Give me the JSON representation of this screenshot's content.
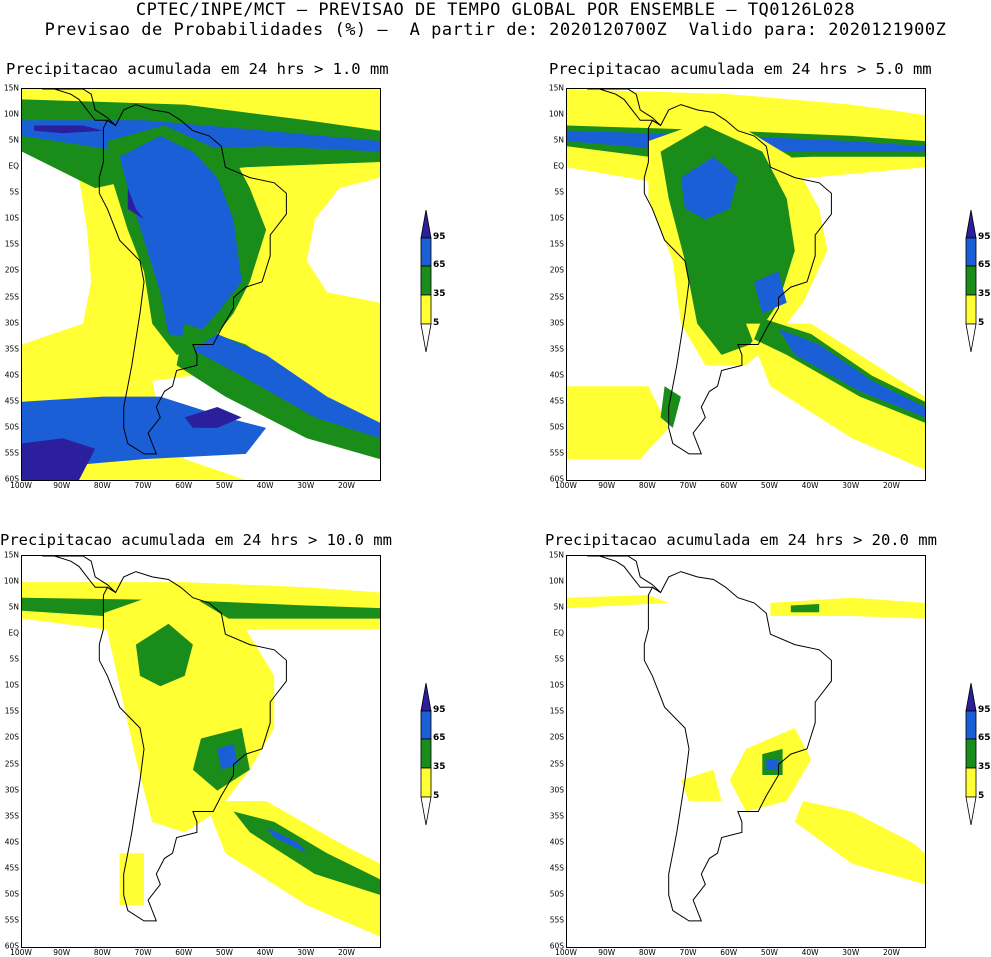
{
  "header": {
    "line1": "CPTEC/INPE/MCT – PREVISAO DE TEMPO GLOBAL POR ENSEMBLE – TQ0126L028",
    "line2": "Previsao de Probabilidades (%) –  A partir de: 2020120700Z  Valido para: 2020121900Z"
  },
  "panels": [
    {
      "title": "Precipitacao acumulada em 24 hrs > 1.0 mm"
    },
    {
      "title": "Precipitacao acumulada em 24 hrs > 5.0 mm"
    },
    {
      "title": "Precipitacao acumulada em 24 hrs > 10.0 mm"
    },
    {
      "title": "Precipitacao acumulada em 24 hrs > 20.0 mm"
    }
  ],
  "lat_labels": [
    "15N",
    "10N",
    "5N",
    "EQ",
    "5S",
    "10S",
    "15S",
    "20S",
    "25S",
    "30S",
    "35S",
    "40S",
    "45S",
    "50S",
    "55S",
    "60S"
  ],
  "lon_labels": [
    "100W",
    "90W",
    "80W",
    "70W",
    "60W",
    "50W",
    "40W",
    "30W",
    "20W"
  ],
  "colorbar": {
    "labels": [
      "95",
      "65",
      "35",
      "5"
    ],
    "colors": {
      "c95": "#2b1f9e",
      "c65": "#1a5fd6",
      "c35": "#1a8c1a",
      "c5": "#ffff33",
      "low": "#ffffff"
    }
  }
}
